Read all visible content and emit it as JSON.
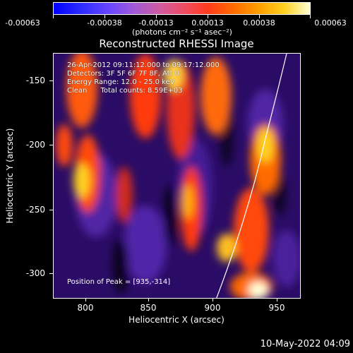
{
  "colorbar": {
    "tick_labels": [
      "-0.00063",
      "-0.00038",
      "-0.00013",
      "0.00013",
      "0.00038",
      "0.00063"
    ],
    "units": "(photons cm⁻² s⁻¹ asec⁻²)"
  },
  "title": "Reconstructed RHESSI Image",
  "info": {
    "time_range": "26-Apr-2012 09:11:12.000 to 09:17:12.000",
    "detectors": "Detectors: 3F 5F 6F 7F 8F, Att 0",
    "energy": "Energy Range: 12.0 - 25.0 keV",
    "clean": "Clean      Total counts: 8.59E+03"
  },
  "peak": "Position of Peak = [935,-314]",
  "x_axis": {
    "title": "Heliocentric X (arcsec)",
    "ticks": [
      "800",
      "850",
      "900",
      "950"
    ],
    "range": [
      775,
      967
    ]
  },
  "y_axis": {
    "title": "Heliocentric Y (arcsec)",
    "ticks": [
      "-150",
      "-200",
      "-250",
      "-300"
    ],
    "range": [
      -320,
      -130
    ]
  },
  "datestamp": "10-May-2022 04:09",
  "palette": {
    "low": "#2b0d6b",
    "mid": "#ff3a1e",
    "high": "#ffffd8"
  }
}
